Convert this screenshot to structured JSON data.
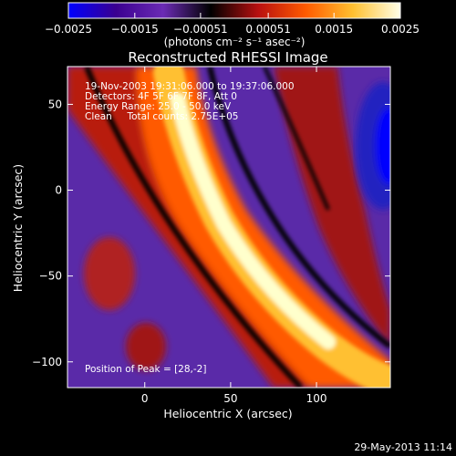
{
  "chart_data": {
    "type": "heatmap",
    "title": "Reconstructed RHESSI Image",
    "xlabel": "Heliocentric X (arcsec)",
    "ylabel": "Heliocentric Y (arcsec)",
    "xlim": [
      -45,
      143
    ],
    "ylim": [
      -115,
      72
    ],
    "xticks": [
      0,
      50,
      100
    ],
    "yticks": [
      50,
      0,
      -50,
      -100
    ],
    "xtick_labels": [
      "0",
      "50",
      "100"
    ],
    "ytick_labels": [
      "50",
      "0",
      "−50",
      "−100"
    ],
    "colorbar": {
      "min": -0.0025,
      "max": 0.0025,
      "ticks": [
        -0.0025,
        -0.0015,
        -0.00051,
        0.00051,
        0.0015,
        0.0025
      ],
      "tick_labels": [
        "−0.0025",
        "−0.0015",
        "−0.00051",
        "0.00051",
        "0.0015",
        "0.0025"
      ],
      "unit_label": "(photons cm⁻² s⁻¹ asec⁻²)",
      "colors": [
        "#0000ff",
        "#3a0090",
        "#6b2bb5",
        "#000000",
        "#b81010",
        "#ff5a00",
        "#ffc030",
        "#ffffe8"
      ]
    },
    "annotations": [
      "19-Nov-2003 19:31:06.000 to 19:37:06.000",
      "Detectors: 4F 5F 6F 7F 8F, Att 0",
      "Energy Range: 25.0 - 50.0 keV",
      "Clean     Total counts: 2.75E+05"
    ],
    "peak_label": "Position of Peak = [28,-2]",
    "peak": [
      28,
      -2
    ]
  },
  "footer": {
    "timestamp": "29-May-2013 11:14"
  }
}
